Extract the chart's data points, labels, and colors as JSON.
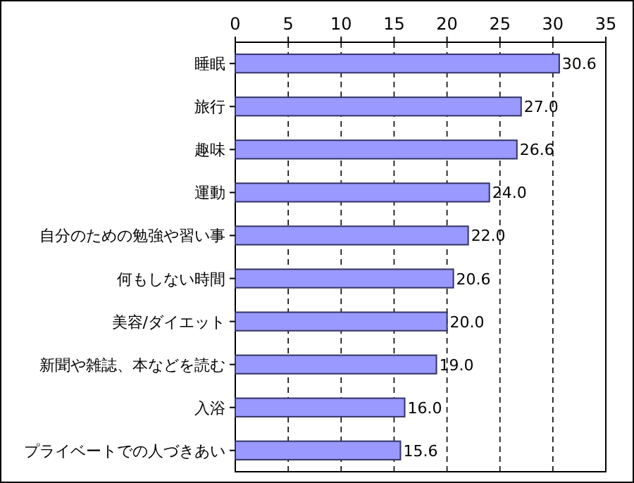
{
  "chart_data": {
    "type": "bar",
    "orientation": "horizontal",
    "categories": [
      "睡眠",
      "旅行",
      "趣味",
      "運動",
      "自分のための勉強や習い事",
      "何もしない時間",
      "美容/ダイエット",
      "新聞や雑誌、本などを読む",
      "入浴",
      "プライベートでの人づきあい"
    ],
    "values": [
      30.6,
      27.0,
      26.6,
      24.0,
      22.0,
      20.6,
      20.0,
      19.0,
      16.0,
      15.6
    ],
    "value_labels": [
      "30.6",
      "27.0",
      "26.6",
      "24.0",
      "22.0",
      "20.6",
      "20.0",
      "19.0",
      "16.0",
      "15.6"
    ],
    "color": "#9999ff",
    "xlim": [
      0,
      35
    ],
    "xticks": [
      0,
      5,
      10,
      15,
      20,
      25,
      30,
      35
    ],
    "grid": "x"
  }
}
